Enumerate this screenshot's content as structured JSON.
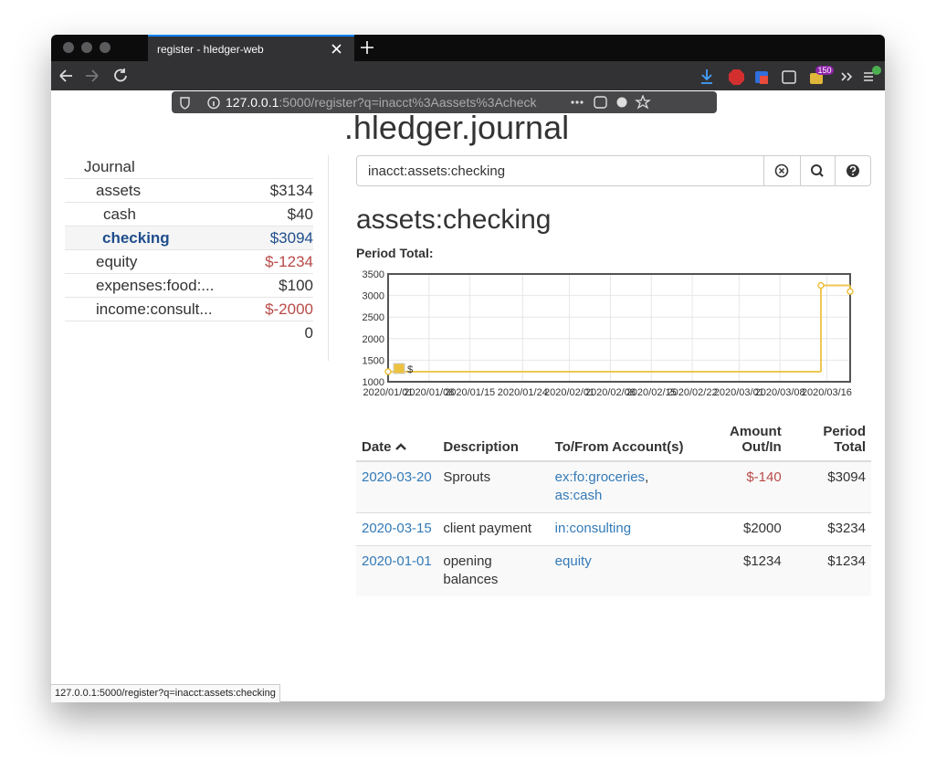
{
  "browser": {
    "tab_title": "register - hledger-web",
    "url_host": "127.0.0.1",
    "url_rest": ":5000/register?q=inacct%3Aassets%3Acheck",
    "badge": "150",
    "status_url": "127.0.0.1:5000/register?q=inacct:assets:checking"
  },
  "page": {
    "title": ".hledger.journal",
    "sidebar": {
      "heading": "Journal",
      "accounts": [
        {
          "name": "assets",
          "amount": "$3134"
        },
        {
          "name": "cash",
          "amount": "$40"
        },
        {
          "name": "checking",
          "amount": "$3094"
        },
        {
          "name": "equity",
          "amount": "$-1234"
        },
        {
          "name": "expenses:food:...",
          "amount": "$100"
        },
        {
          "name": "income:consult...",
          "amount": "$-2000"
        }
      ],
      "total": "0"
    },
    "search": "inacct:assets:checking",
    "heading": "assets:checking",
    "chart_label": "Period Total:",
    "chart": {
      "type": "line",
      "x": [
        "2020/01/01",
        "2020/03/15",
        "2020/03/20"
      ],
      "series": [
        {
          "name": "$",
          "color": "#edc240",
          "values": [
            1234,
            3234,
            3094
          ]
        }
      ],
      "xlim": [
        "2020/01/01",
        "2020/03/20"
      ],
      "xticks": [
        "2020/01/01",
        "2020/01/08",
        "2020/01/15",
        "2020/01/24",
        "2020/02/01",
        "2020/02/08",
        "2020/02/15",
        "2020/02/22",
        "2020/03/01",
        "2020/03/08",
        "2020/03/16"
      ],
      "ylim": [
        1000,
        3500
      ],
      "yticks": [
        1000,
        1500,
        2000,
        2500,
        3000,
        3500
      ],
      "grid": true
    },
    "table": {
      "headers": [
        "Date",
        "Description",
        "To/From Account(s)",
        "Amount Out/In",
        "Period Total"
      ],
      "rows": [
        {
          "date": "2020-03-20",
          "description": "Sprouts",
          "accounts": [
            "ex:fo:groceries",
            "as:cash"
          ],
          "amount": "$-140",
          "total": "$3094"
        },
        {
          "date": "2020-03-15",
          "description": "client payment",
          "accounts": [
            "in:consulting"
          ],
          "amount": "$2000",
          "total": "$3234"
        },
        {
          "date": "2020-01-01",
          "description": "opening balances",
          "accounts": [
            "equity"
          ],
          "amount": "$1234",
          "total": "$1234"
        }
      ]
    }
  }
}
